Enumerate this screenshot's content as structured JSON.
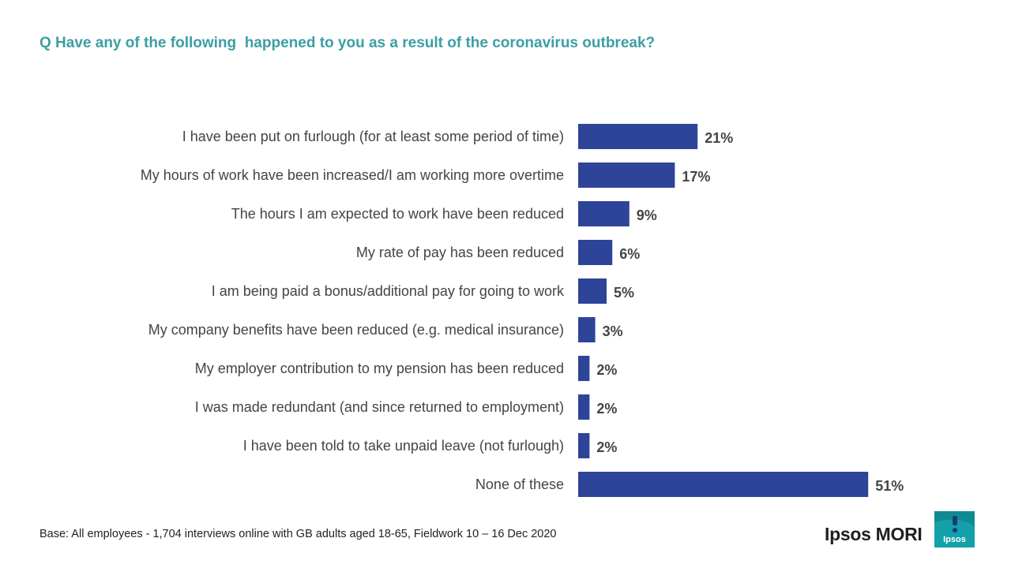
{
  "title": "Q Have any of the following  happened to you as a result of the coronavirus outbreak?",
  "footer": "Base: All employees - 1,704 interviews online with GB adults aged 18-65, Fieldwork 10 – 16 Dec 2020",
  "brand": "Ipsos MORI",
  "logo_text": "Ipsos",
  "colors": {
    "title": "#3d9ea3",
    "bar": "#2e4499",
    "logo": "#13a0a8"
  },
  "chart_data": {
    "type": "bar",
    "orientation": "horizontal",
    "title": "Q Have any of the following  happened to you as a result of the coronavirus outbreak?",
    "xlabel": "",
    "ylabel": "",
    "xlim": [
      0,
      100
    ],
    "grid": false,
    "categories": [
      "I have been put on furlough (for at least some period of time)",
      "My hours of work have been increased/I am working more overtime",
      "The hours I am expected to work have been reduced",
      "My rate of pay has been reduced",
      "I am being paid a bonus/additional pay for going to work",
      "My company benefits have been reduced (e.g. medical insurance)",
      "My employer contribution to my pension has been reduced",
      "I was made redundant (and since returned to employment)",
      "I have been told to take unpaid leave (not furlough)",
      "None of these"
    ],
    "values": [
      21,
      17,
      9,
      6,
      5,
      3,
      2,
      2,
      2,
      51
    ],
    "value_labels": [
      "21%",
      "17%",
      "9%",
      "6%",
      "5%",
      "3%",
      "2%",
      "2%",
      "2%",
      "51%"
    ]
  }
}
